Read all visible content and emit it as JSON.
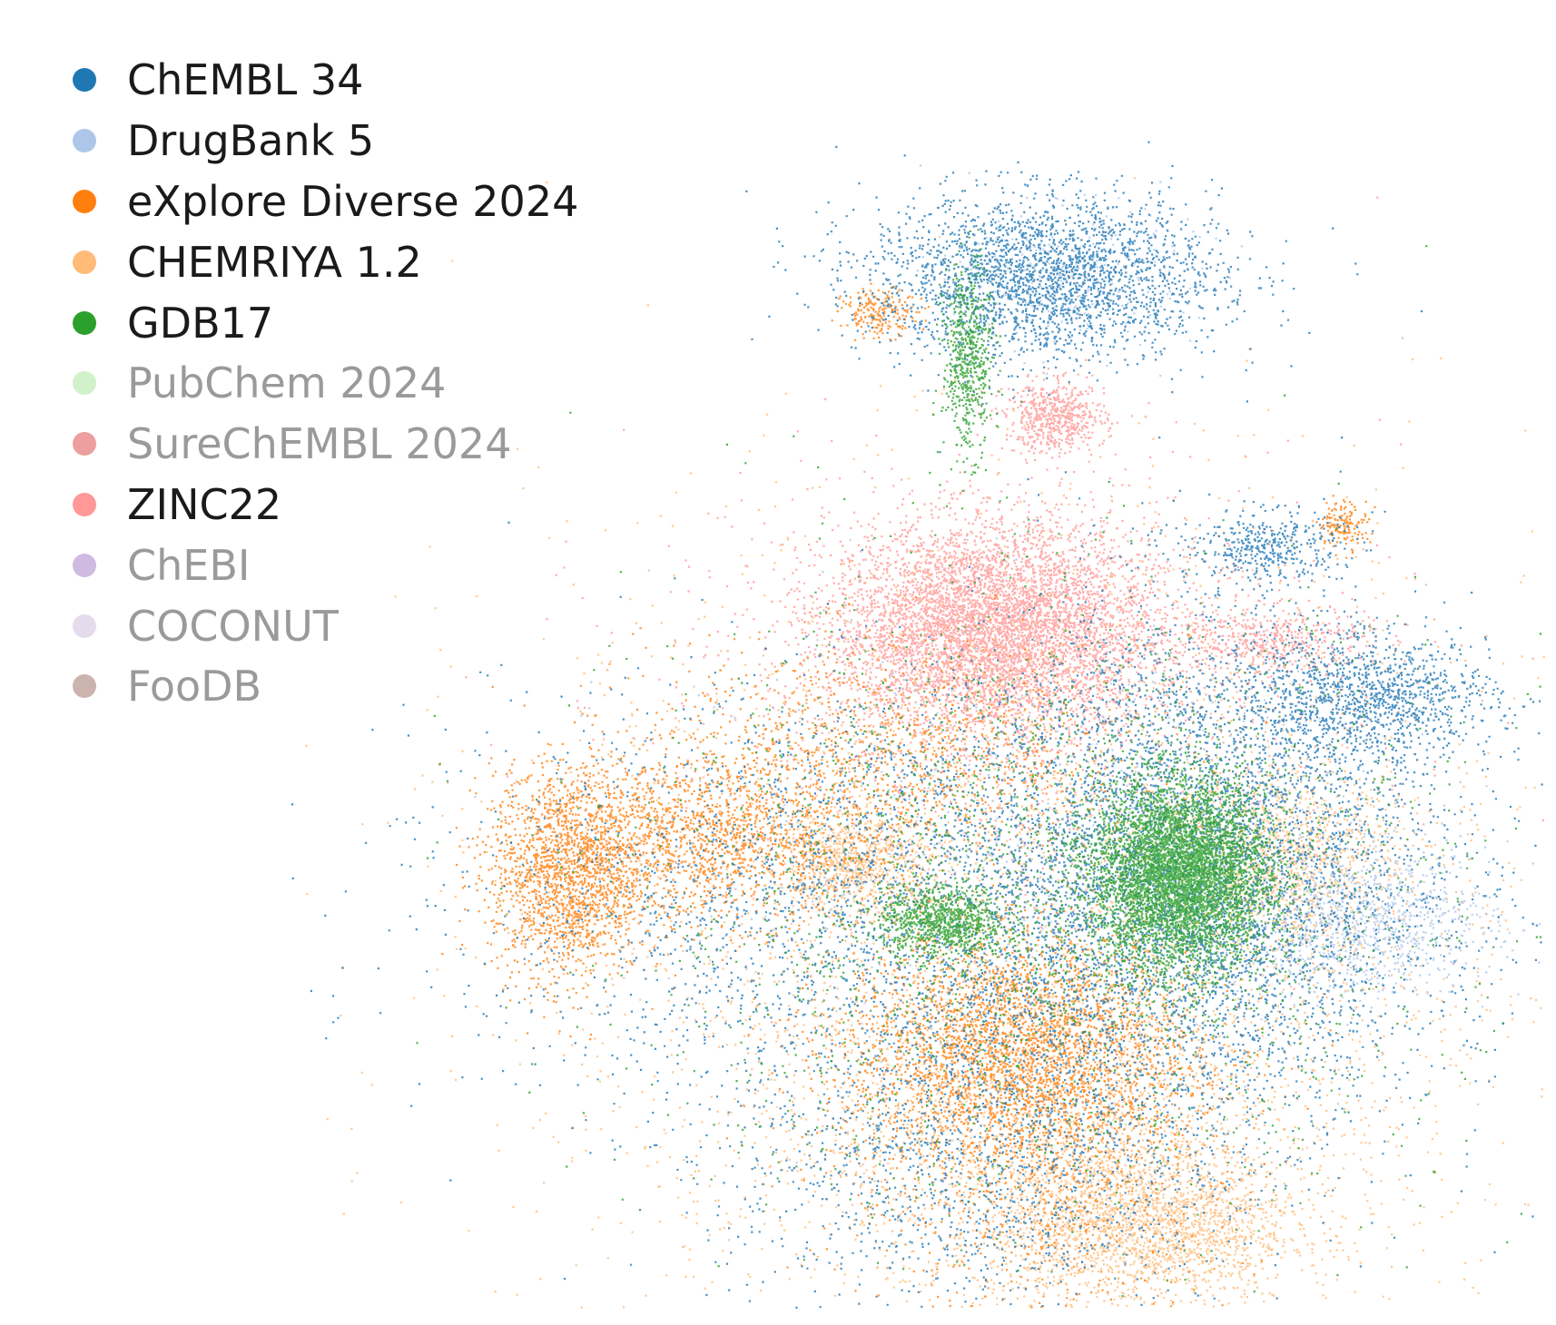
{
  "chart_data": {
    "type": "scatter",
    "title": "",
    "xlabel": "",
    "ylabel": "",
    "grid": false,
    "axes_visible": false,
    "legend_position": "top-left",
    "series": [
      {
        "name": "ChEMBL 34",
        "color": "#1f77b4",
        "visible": true
      },
      {
        "name": "DrugBank 5",
        "color": "#aec7e8",
        "visible": true
      },
      {
        "name": "eXplore Diverse 2024",
        "color": "#ff7f0e",
        "visible": true
      },
      {
        "name": "CHEMRIYA 1.2",
        "color": "#ffbb78",
        "visible": true
      },
      {
        "name": "GDB17",
        "color": "#2ca02c",
        "visible": true
      },
      {
        "name": "PubChem 2024",
        "color": "#98df8a",
        "visible": false
      },
      {
        "name": "SureChEMBL 2024",
        "color": "#d62728",
        "visible": false
      },
      {
        "name": "ZINC22",
        "color": "#ff9896",
        "visible": true
      },
      {
        "name": "ChEBI",
        "color": "#9467bd",
        "visible": false
      },
      {
        "name": "COCONUT",
        "color": "#c5b0d5",
        "visible": false
      },
      {
        "name": "FooDB",
        "color": "#8c564b",
        "visible": false
      }
    ],
    "clusters": {
      "ChEMBL 34": [
        {
          "x": 0.6,
          "y": 0.88,
          "sx": 0.07,
          "sy": 0.035,
          "n": 2600
        },
        {
          "x": 0.73,
          "y": 0.38,
          "sx": 0.09,
          "sy": 0.11,
          "n": 4200
        },
        {
          "x": 0.53,
          "y": 0.35,
          "sx": 0.18,
          "sy": 0.09,
          "n": 3600
        },
        {
          "x": 0.86,
          "y": 0.52,
          "sx": 0.05,
          "sy": 0.025,
          "n": 1100
        },
        {
          "x": 0.78,
          "y": 0.65,
          "sx": 0.03,
          "sy": 0.015,
          "n": 400
        },
        {
          "x": 0.55,
          "y": 0.13,
          "sx": 0.1,
          "sy": 0.07,
          "n": 1500
        }
      ],
      "DrugBank 5": [
        {
          "x": 0.86,
          "y": 0.33,
          "sx": 0.05,
          "sy": 0.03,
          "n": 900
        },
        {
          "x": 0.62,
          "y": 0.88,
          "sx": 0.05,
          "sy": 0.03,
          "n": 300
        },
        {
          "x": 0.6,
          "y": 0.4,
          "sx": 0.15,
          "sy": 0.1,
          "n": 500
        }
      ],
      "eXplore Diverse 2024": [
        {
          "x": 0.22,
          "y": 0.37,
          "sx": 0.03,
          "sy": 0.045,
          "n": 1700
        },
        {
          "x": 0.33,
          "y": 0.4,
          "sx": 0.07,
          "sy": 0.035,
          "n": 1600
        },
        {
          "x": 0.58,
          "y": 0.22,
          "sx": 0.07,
          "sy": 0.05,
          "n": 3200
        },
        {
          "x": 0.48,
          "y": 0.47,
          "sx": 0.1,
          "sy": 0.05,
          "n": 1200
        },
        {
          "x": 0.47,
          "y": 0.85,
          "sx": 0.015,
          "sy": 0.01,
          "n": 200
        },
        {
          "x": 0.84,
          "y": 0.67,
          "sx": 0.01,
          "sy": 0.01,
          "n": 150
        },
        {
          "x": 0.6,
          "y": 0.1,
          "sx": 0.08,
          "sy": 0.06,
          "n": 700
        }
      ],
      "CHEMRIYA 1.2": [
        {
          "x": 0.68,
          "y": 0.07,
          "sx": 0.06,
          "sy": 0.035,
          "n": 2000
        },
        {
          "x": 0.8,
          "y": 0.38,
          "sx": 0.04,
          "sy": 0.04,
          "n": 900
        },
        {
          "x": 0.45,
          "y": 0.38,
          "sx": 0.03,
          "sy": 0.02,
          "n": 700
        },
        {
          "x": 0.6,
          "y": 0.32,
          "sx": 0.2,
          "sy": 0.18,
          "n": 3500
        },
        {
          "x": 0.6,
          "y": 0.15,
          "sx": 0.12,
          "sy": 0.07,
          "n": 1200
        }
      ],
      "GDB17": [
        {
          "x": 0.71,
          "y": 0.37,
          "sx": 0.035,
          "sy": 0.04,
          "n": 5200
        },
        {
          "x": 0.52,
          "y": 0.33,
          "sx": 0.025,
          "sy": 0.015,
          "n": 900
        },
        {
          "x": 0.54,
          "y": 0.81,
          "sx": 0.01,
          "sy": 0.04,
          "n": 600
        },
        {
          "x": 0.6,
          "y": 0.35,
          "sx": 0.16,
          "sy": 0.13,
          "n": 2200
        }
      ],
      "ZINC22": [
        {
          "x": 0.56,
          "y": 0.58,
          "sx": 0.065,
          "sy": 0.045,
          "n": 6500
        },
        {
          "x": 0.61,
          "y": 0.76,
          "sx": 0.02,
          "sy": 0.015,
          "n": 600
        },
        {
          "x": 0.78,
          "y": 0.57,
          "sx": 0.04,
          "sy": 0.015,
          "n": 500
        },
        {
          "x": 0.58,
          "y": 0.52,
          "sx": 0.15,
          "sy": 0.1,
          "n": 900
        }
      ]
    }
  },
  "legend": {
    "items": [
      {
        "label": "ChEMBL 34"
      },
      {
        "label": "DrugBank 5"
      },
      {
        "label": "eXplore Diverse 2024"
      },
      {
        "label": "CHEMRIYA 1.2"
      },
      {
        "label": "GDB17"
      },
      {
        "label": "PubChem 2024"
      },
      {
        "label": "SureChEMBL 2024"
      },
      {
        "label": "ZINC22"
      },
      {
        "label": "ChEBI"
      },
      {
        "label": "COCONUT"
      },
      {
        "label": "FooDB"
      }
    ]
  }
}
